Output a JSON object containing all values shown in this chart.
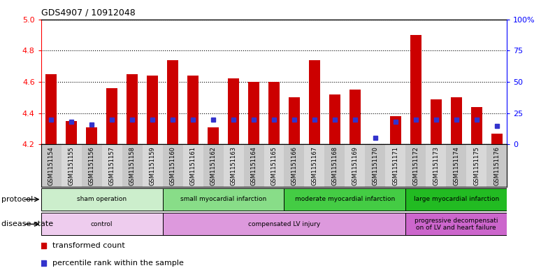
{
  "title": "GDS4907 / 10912048",
  "samples": [
    "GSM1151154",
    "GSM1151155",
    "GSM1151156",
    "GSM1151157",
    "GSM1151158",
    "GSM1151159",
    "GSM1151160",
    "GSM1151161",
    "GSM1151162",
    "GSM1151163",
    "GSM1151164",
    "GSM1151165",
    "GSM1151166",
    "GSM1151167",
    "GSM1151168",
    "GSM1151169",
    "GSM1151170",
    "GSM1151171",
    "GSM1151172",
    "GSM1151173",
    "GSM1151174",
    "GSM1151175",
    "GSM1151176"
  ],
  "transformed_count": [
    4.65,
    4.35,
    4.31,
    4.56,
    4.65,
    4.64,
    4.74,
    4.64,
    4.31,
    4.62,
    4.6,
    4.6,
    4.5,
    4.74,
    4.52,
    4.55,
    4.2,
    4.38,
    4.9,
    4.49,
    4.5,
    4.44,
    4.27
  ],
  "percentile_rank": [
    20,
    18,
    16,
    20,
    20,
    20,
    20,
    20,
    20,
    20,
    20,
    20,
    20,
    20,
    20,
    20,
    5,
    18,
    20,
    20,
    20,
    20,
    15
  ],
  "ylim_left": [
    4.2,
    5.0
  ],
  "ylim_right": [
    0,
    100
  ],
  "yticks_left": [
    4.2,
    4.4,
    4.6,
    4.8,
    5.0
  ],
  "yticks_right": [
    0,
    25,
    50,
    75,
    100
  ],
  "ytick_labels_right": [
    "0",
    "25",
    "50",
    "75",
    "100%"
  ],
  "bar_bottom": 4.2,
  "bar_color": "#cc0000",
  "blue_color": "#3333cc",
  "protocol_groups": [
    {
      "label": "sham operation",
      "start": 0,
      "end": 6,
      "color": "#cceecc"
    },
    {
      "label": "small myocardial infarction",
      "start": 6,
      "end": 12,
      "color": "#88dd88"
    },
    {
      "label": "moderate myocardial infarction",
      "start": 12,
      "end": 18,
      "color": "#44cc44"
    },
    {
      "label": "large myocardial infarction",
      "start": 18,
      "end": 23,
      "color": "#22bb22"
    }
  ],
  "disease_groups": [
    {
      "label": "control",
      "start": 0,
      "end": 6,
      "color": "#eeccee"
    },
    {
      "label": "compensated LV injury",
      "start": 6,
      "end": 18,
      "color": "#dd99dd"
    },
    {
      "label": "progressive decompensati\non of LV and heart failure",
      "start": 18,
      "end": 23,
      "color": "#cc66cc"
    }
  ],
  "legend_items": [
    {
      "label": "transformed count",
      "color": "#cc0000",
      "marker": "s"
    },
    {
      "label": "percentile rank within the sample",
      "color": "#3333cc",
      "marker": "s"
    }
  ],
  "protocol_label": "protocol",
  "disease_label": "disease state",
  "bar_width": 0.55
}
